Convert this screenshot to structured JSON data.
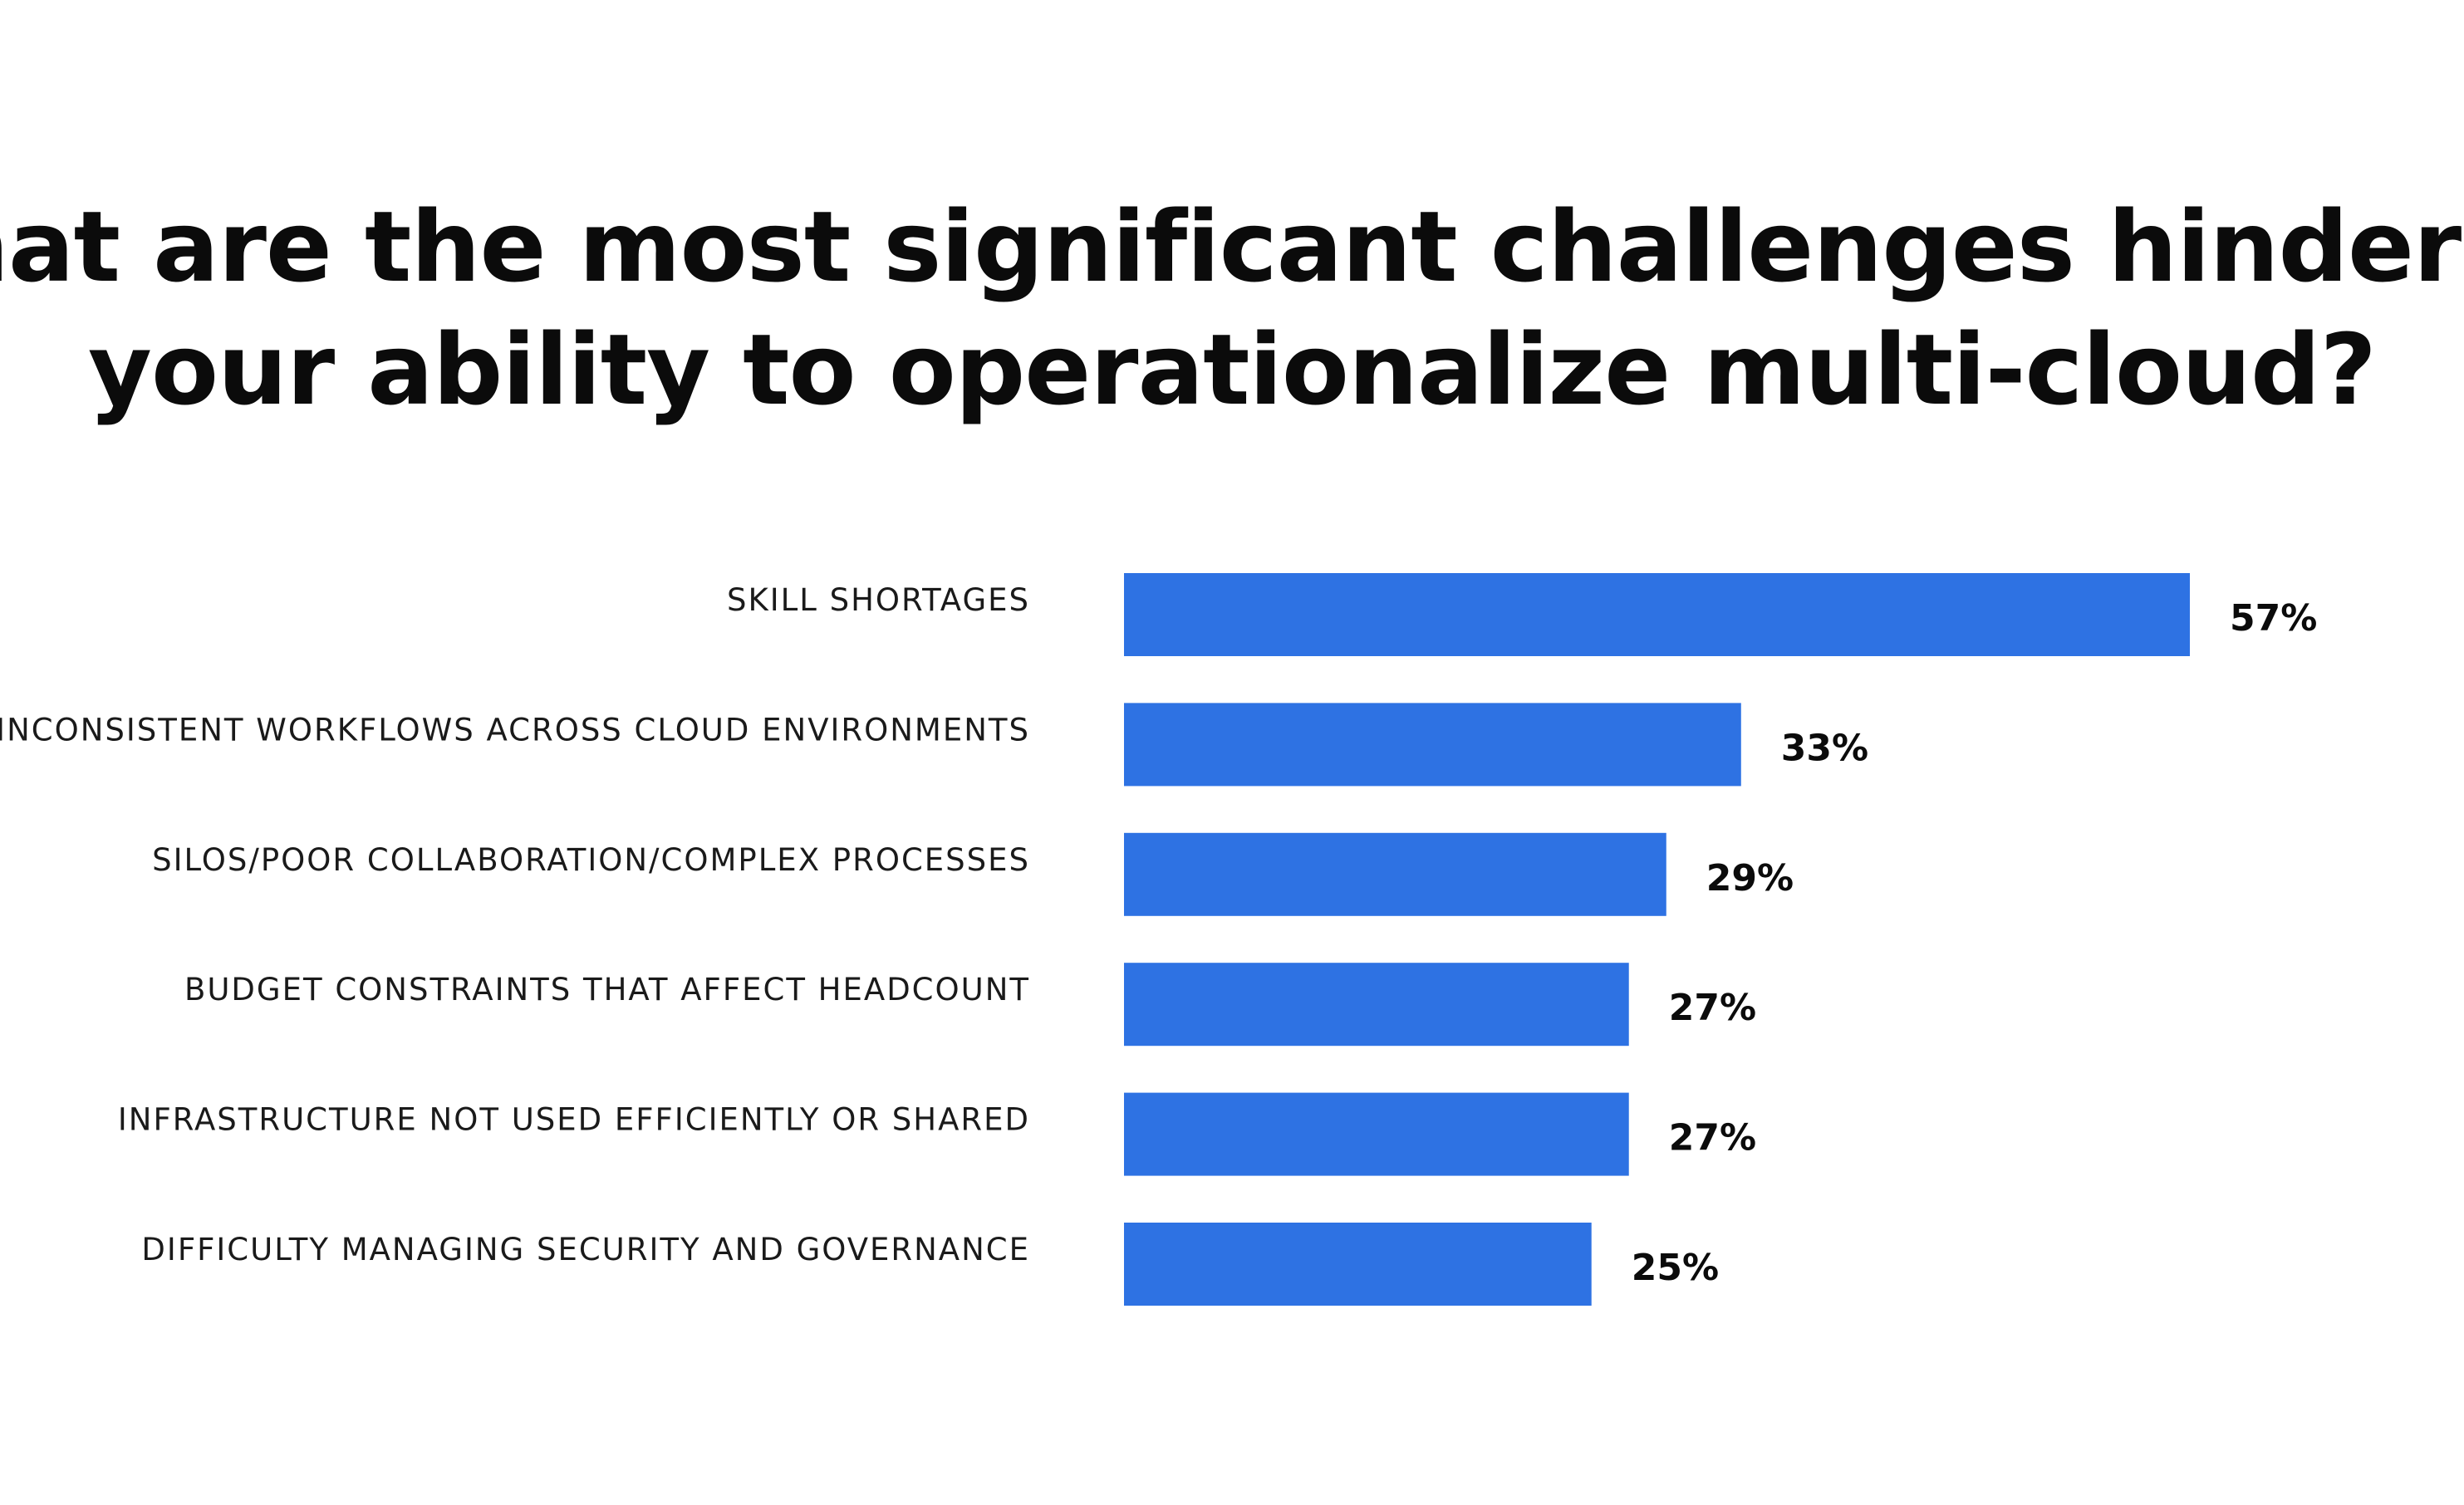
{
  "chart_data": {
    "type": "bar",
    "orientation": "horizontal",
    "title": "What are the most significant challenges hindering your ability to operationalize multi-cloud?",
    "title_lines": [
      "What are the most significant challenges hindering",
      "your ability to operationalize multi-cloud?"
    ],
    "categories": [
      "SKILL SHORTAGES",
      "INCONSISTENT WORKFLOWS ACROSS CLOUD ENVIRONMENTS",
      "SILOS/POOR COLLABORATION/COMPLEX PROCESSES",
      "BUDGET CONSTRAINTS THAT AFFECT HEADCOUNT",
      "INFRASTRUCTURE NOT USED EFFICIENTLY OR SHARED",
      "DIFFICULTY MANAGING SECURITY AND GOVERNANCE"
    ],
    "values": [
      57,
      33,
      29,
      27,
      27,
      25
    ],
    "value_labels": [
      "57%",
      "33%",
      "29%",
      "27%",
      "27%",
      "25%"
    ],
    "unit": "%",
    "xlim": [
      0,
      57
    ],
    "xlabel": "",
    "ylabel": "",
    "grid": false,
    "legend": "none",
    "bar_color": "#2e72e3"
  }
}
